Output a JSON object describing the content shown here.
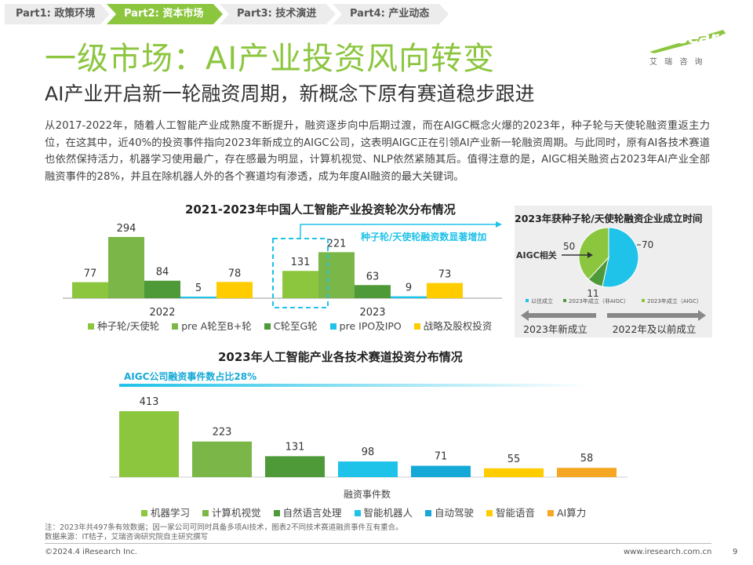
{
  "nav": {
    "tabs": [
      {
        "label": "Part1: 政策环境"
      },
      {
        "label": "Part2: 资本市场"
      },
      {
        "label": "Part3: 技术演进"
      },
      {
        "label": "Part4: 产业动态"
      }
    ]
  },
  "logo": {
    "text": "iResearch",
    "tagline": "艾 瑞 咨 询"
  },
  "page": {
    "title": "一级市场：AI产业投资风向转变",
    "subtitle": "AI产业开启新一轮融资周期，新概念下原有赛道稳步跟进",
    "paragraph": "从2017-2022年，随着人工智能产业成熟度不断提升，融资逐步向中后期过渡，而在AIGC概念火爆的2023年，种子轮与天使轮融资重返主力位，在这其中，近40%的投资事件指向2023年新成立的AIGC公司，这表明AIGC正在引领AI产业新一轮融资周期。与此同时，原有AI各技术赛道也依然保持活力，机器学习使用最广，存在感最为明显，计算机视觉、NLP依然紧随其后。值得注意的是，AIGC相关融资占2023年AI产业全部融资事件的28%，并且在除机器人外的各个赛道均有渗透，成为年度AI融资的最大关键词。"
  },
  "colors": {
    "green_light": "#8cc63f",
    "green_mid": "#7ab648",
    "green_dark": "#4f9a38",
    "cyan": "#1fc2e8",
    "blue": "#16a9d8",
    "yellow": "#ffcc00",
    "orange": "#f5a623"
  },
  "chart_data": [
    {
      "type": "bar",
      "title": "2021-2023年中国人工智能产业投资轮次分布情况",
      "categories": [
        "2022",
        "2023"
      ],
      "series": [
        {
          "name": "种子轮/天使轮",
          "values": [
            77,
            131
          ]
        },
        {
          "name": "pre A轮至B+轮",
          "values": [
            294,
            221
          ]
        },
        {
          "name": "C轮至G轮",
          "values": [
            84,
            63
          ]
        },
        {
          "name": "pre IPO及IPO",
          "values": [
            5,
            9
          ]
        },
        {
          "name": "战略及股权投资",
          "values": [
            78,
            73
          ]
        }
      ],
      "annotation": "种子轮/天使轮融资数显著增加"
    },
    {
      "type": "pie",
      "title": "2023年获种子轮/天使轮融资企业成立时间",
      "labels": [
        "以往成立",
        "2023年成立（非AIGC）",
        "2023年成立（AIGC）"
      ],
      "values": [
        70,
        11,
        50
      ],
      "annotations": {
        "aigc": "AIGC相关",
        "new": "2023年新成立",
        "old": "2022年及以前成立"
      }
    },
    {
      "type": "bar",
      "title": "2023年人工智能产业各技术赛道投资分布情况",
      "categories": [
        "机器学习",
        "计算机视觉",
        "自然语言处理",
        "智能机器人",
        "自动驾驶",
        "智能语音",
        "AI算力"
      ],
      "values": [
        413,
        223,
        131,
        98,
        71,
        55,
        58
      ],
      "xlabel": "融资事件数",
      "banner": "AIGC公司融资事件数占比28%"
    }
  ],
  "notes": {
    "line1": "注：2023年共497条有效数据；因一家公司可同时具备多项AI技术，图表2不同技术赛道融资事件互有重合。",
    "line2": "数据来源：IT桔子，艾瑞咨询研究院自主研究撰写"
  },
  "footer": {
    "copyright": "©2024.4 iResearch Inc.",
    "website": "www.iresearch.com.cn",
    "page_number": "9"
  }
}
